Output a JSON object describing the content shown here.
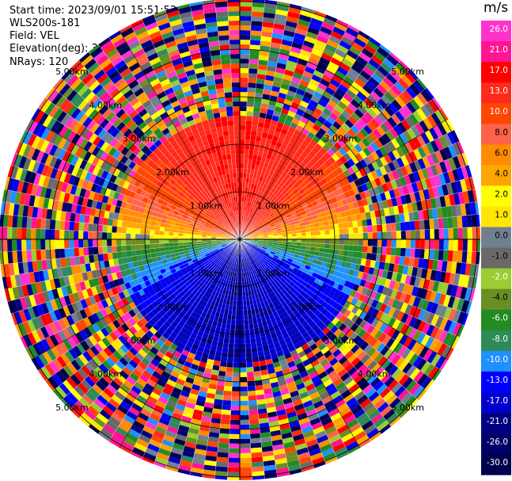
{
  "header": {
    "start_time": "Start time: 2023/09/01 15:51:52",
    "instrument": "WLS200s-181",
    "field": "Field: VEL",
    "elevation": "Elevation(deg): 35.30",
    "nrays": "NRays: 120"
  },
  "colorbar": {
    "unit": "m/s",
    "ticks": [
      "26.0",
      "21.0",
      "17.0",
      "13.0",
      "10.0",
      "8.0",
      "6.0",
      "4.0",
      "2.0",
      "1.0",
      "0.0",
      "-1.0",
      "-2.0",
      "-4.0",
      "-6.0",
      "-8.0",
      "-10.0",
      "-13.0",
      "-17.0",
      "-21.0",
      "-26.0",
      "-30.0"
    ],
    "colors": [
      "#ff33cc",
      "#ff1493",
      "#ff0000",
      "#ff2a1a",
      "#ff4500",
      "#ff6347",
      "#ff8c00",
      "#ffa500",
      "#ffff00",
      "#ffe600",
      "#708090",
      "#696969",
      "#9acd32",
      "#6b8e23",
      "#228b22",
      "#2e8b57",
      "#1e90ff",
      "#0000ff",
      "#0000cd",
      "#000080",
      "#000066",
      "#00004d"
    ]
  },
  "chart_data": {
    "type": "heatmap",
    "projection": "polar PPI",
    "field": "VEL",
    "units": "m/s",
    "nrays": 120,
    "value_range": [
      -30.0,
      26.0
    ],
    "range_rings": [
      {
        "range_km": 1.0,
        "label": "1.00km"
      },
      {
        "range_km": 2.0,
        "label": "2.00km"
      },
      {
        "range_km": 3.0,
        "label": "3.00km"
      },
      {
        "range_km": 4.0,
        "label": "4.00km"
      },
      {
        "range_km": 5.0,
        "label": "5.00km"
      }
    ],
    "approx_pattern": {
      "north_sector_velocity": 17.0,
      "south_sector_velocity": -17.0,
      "near_zero_band": "east-west",
      "beyond_km": 2.6,
      "beyond_description": "noise"
    }
  }
}
